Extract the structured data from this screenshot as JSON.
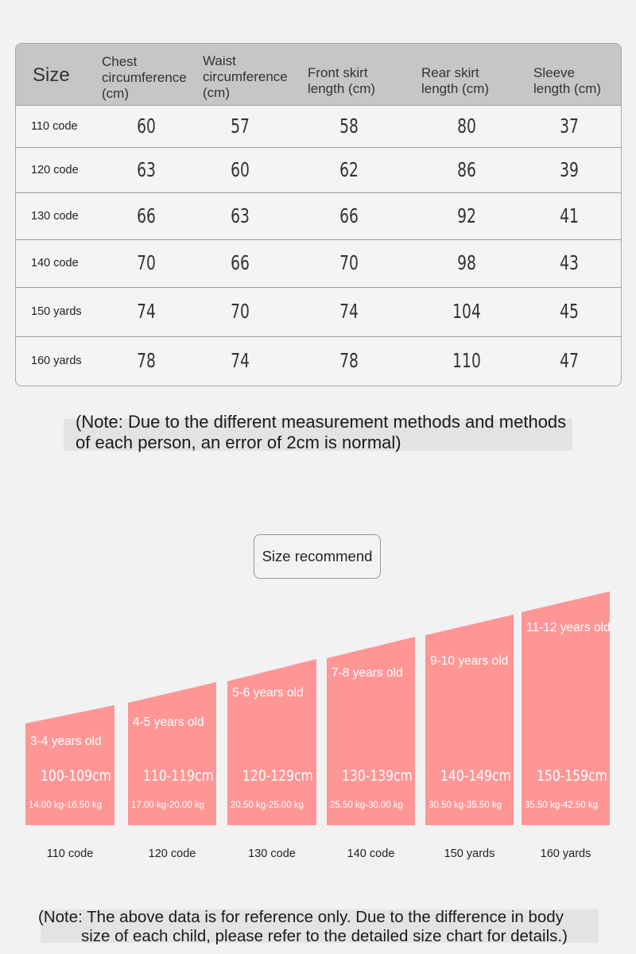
{
  "table": {
    "headers": {
      "size": "Size",
      "chest": [
        "Chest",
        "circumference",
        "(cm)"
      ],
      "waist": [
        "Waist",
        "circumference",
        "(cm)"
      ],
      "front": [
        "Front skirt",
        "length (cm)"
      ],
      "rear": [
        "Rear skirt",
        "length (cm)"
      ],
      "sleeve": [
        "Sleeve",
        "length (cm)"
      ]
    },
    "rows": [
      {
        "size": "110 code",
        "chest": "60",
        "waist": "57",
        "front": "58",
        "rear": "80",
        "sleeve": "37"
      },
      {
        "size": "120 code",
        "chest": "63",
        "waist": "60",
        "front": "62",
        "rear": "86",
        "sleeve": "39"
      },
      {
        "size": "130 code",
        "chest": "66",
        "waist": "63",
        "front": "66",
        "rear": "92",
        "sleeve": "41"
      },
      {
        "size": "140 code",
        "chest": "70",
        "waist": "66",
        "front": "70",
        "rear": "98",
        "sleeve": "43"
      },
      {
        "size": "150 yards",
        "chest": "74",
        "waist": "70",
        "front": "74",
        "rear": "104",
        "sleeve": "45"
      },
      {
        "size": "160 yards",
        "chest": "78",
        "waist": "74",
        "front": "78",
        "rear": "110",
        "sleeve": "47"
      }
    ]
  },
  "note_measurement": "(Note: Due to the different measurement methods and methods of each person, an error of 2cm is normal)",
  "recommend": {
    "title": "Size recommend",
    "items": [
      {
        "age": "3-4 years old",
        "height": "100-109cm",
        "weight": "14.00 kg-16.50 kg",
        "code": "110 code"
      },
      {
        "age": "4-5 years old",
        "height": "110-119cm",
        "weight": "17.00 kg-20.00 kg",
        "code": "120 code"
      },
      {
        "age": "5-6 years old",
        "height": "120-129cm",
        "weight": "20.50 kg-25.00 kg",
        "code": "130 code"
      },
      {
        "age": "7-8 years old",
        "height": "130-139cm",
        "weight": "25.50 kg-30.00 kg",
        "code": "140 code"
      },
      {
        "age": "9-10 years old",
        "height": "140-149cm",
        "weight": "30.50 kg-35.50 kg",
        "code": "150 yards"
      },
      {
        "age": "11-12 years old",
        "height": "150-159cm",
        "weight": "35.50 kg-42.50 kg",
        "code": "160 yards"
      }
    ],
    "bar_color": "#ff9696"
  },
  "note_reference": {
    "line1": "(Note: The above data is for reference only. Due to the difference in body",
    "line2": "size of each child, please refer to the detailed size chart for details.)"
  }
}
